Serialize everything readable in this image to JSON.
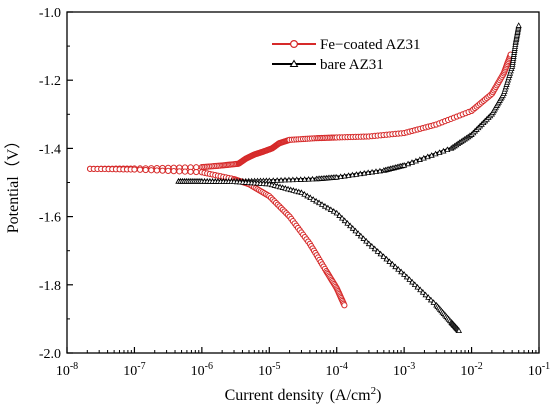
{
  "chart_data": {
    "type": "line",
    "xlabel": "Current density",
    "xlabel_unit": "(A/cm",
    "xlabel_unit_sup": "2",
    "xlabel_unit_close": ")",
    "ylabel": "Potential（V）",
    "x_scale": "log",
    "xlim": [
      1e-08,
      0.1
    ],
    "ylim": [
      -2.0,
      -1.0
    ],
    "x_ticks": [
      {
        "value": 1e-08,
        "base": "10",
        "exp": "-8"
      },
      {
        "value": 1e-07,
        "base": "10",
        "exp": "-7"
      },
      {
        "value": 1e-06,
        "base": "10",
        "exp": "-6"
      },
      {
        "value": 1e-05,
        "base": "10",
        "exp": "-5"
      },
      {
        "value": 0.0001,
        "base": "10",
        "exp": "-4"
      },
      {
        "value": 0.001,
        "base": "10",
        "exp": "-3"
      },
      {
        "value": 0.01,
        "base": "10",
        "exp": "-2"
      },
      {
        "value": 0.1,
        "base": "10",
        "exp": "-1"
      }
    ],
    "y_ticks": [
      "-1.0",
      "-1.2",
      "-1.4",
      "-1.6",
      "-1.8",
      "-2.0"
    ],
    "y_tick_values": [
      -1.0,
      -1.2,
      -1.4,
      -1.6,
      -1.8,
      -2.0
    ],
    "grid": false,
    "legend_position": "top-right",
    "series": [
      {
        "name": "Fe−coated AZ31",
        "color": "#d62a2a",
        "marker": "open-circle",
        "anodic": [
          [
            2.2e-08,
            -1.46
          ],
          [
            1e-07,
            -1.459
          ],
          [
            1e-06,
            -1.455
          ],
          [
            2e-06,
            -1.45
          ],
          [
            3.5e-06,
            -1.445
          ],
          [
            4.5e-06,
            -1.43
          ],
          [
            6e-06,
            -1.418
          ],
          [
            8e-06,
            -1.41
          ],
          [
            1.1e-05,
            -1.4
          ],
          [
            1.4e-05,
            -1.385
          ],
          [
            2e-05,
            -1.375
          ],
          [
            5e-05,
            -1.37
          ],
          [
            0.0001,
            -1.368
          ],
          [
            0.0003,
            -1.365
          ],
          [
            0.001,
            -1.355
          ],
          [
            0.003,
            -1.33
          ],
          [
            0.01,
            -1.29
          ],
          [
            0.02,
            -1.24
          ],
          [
            0.03,
            -1.18
          ],
          [
            0.038,
            -1.125
          ]
        ],
        "cathodic": [
          [
            2.2e-08,
            -1.46
          ],
          [
            1e-07,
            -1.462
          ],
          [
            1e-06,
            -1.47
          ],
          [
            3e-06,
            -1.49
          ],
          [
            5e-06,
            -1.505
          ],
          [
            1e-05,
            -1.54
          ],
          [
            2e-05,
            -1.6
          ],
          [
            4e-05,
            -1.68
          ],
          [
            7e-05,
            -1.76
          ],
          [
            0.0001,
            -1.81
          ],
          [
            0.00013,
            -1.86
          ]
        ]
      },
      {
        "name": "bare AZ31",
        "color": "#000000",
        "marker": "open-triangle",
        "anodic": [
          [
            4.5e-07,
            -1.497
          ],
          [
            1e-06,
            -1.497
          ],
          [
            3e-06,
            -1.497
          ],
          [
            1e-05,
            -1.495
          ],
          [
            5e-05,
            -1.49
          ],
          [
            0.0001,
            -1.485
          ],
          [
            0.0005,
            -1.465
          ],
          [
            0.001,
            -1.45
          ],
          [
            0.005,
            -1.4
          ],
          [
            0.01,
            -1.36
          ],
          [
            0.02,
            -1.3
          ],
          [
            0.03,
            -1.24
          ],
          [
            0.04,
            -1.16
          ],
          [
            0.045,
            -1.09
          ],
          [
            0.05,
            -1.04
          ]
        ],
        "cathodic": [
          [
            4.5e-07,
            -1.497
          ],
          [
            1e-06,
            -1.497
          ],
          [
            3e-06,
            -1.498
          ],
          [
            1e-05,
            -1.505
          ],
          [
            3e-05,
            -1.53
          ],
          [
            0.0001,
            -1.59
          ],
          [
            0.0003,
            -1.68
          ],
          [
            0.001,
            -1.77
          ],
          [
            0.003,
            -1.86
          ],
          [
            0.005,
            -1.91
          ],
          [
            0.0065,
            -1.935
          ]
        ]
      }
    ]
  }
}
